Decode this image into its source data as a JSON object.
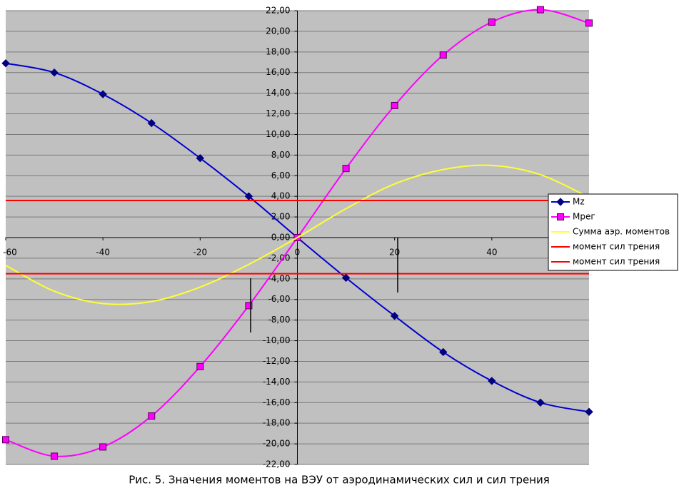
{
  "chart_data": {
    "type": "line",
    "smooth": true,
    "legend": "right",
    "grid": true,
    "caption": "Рис. 5. Значения моментов на ВЭУ от аэродинамических сил и сил трения",
    "x": [
      -60,
      -50,
      -40,
      -30,
      -20,
      -10,
      0,
      10,
      20,
      30,
      40,
      50,
      60
    ],
    "series": [
      {
        "name": "Mz",
        "color": "#0000cc",
        "marker": "diamond",
        "marker_color": "#000080",
        "values": [
          16.9,
          16.0,
          13.9,
          11.1,
          7.7,
          4.0,
          0,
          -3.9,
          -7.6,
          -11.1,
          -13.9,
          -16.0,
          -16.9
        ]
      },
      {
        "name": "Mрег",
        "color": "#ff00ff",
        "marker": "square",
        "marker_color": "#ff00ff",
        "values": [
          -19.6,
          -21.2,
          -20.3,
          -17.3,
          -12.5,
          -6.6,
          0,
          6.7,
          12.8,
          17.7,
          20.9,
          22.1,
          20.8
        ]
      },
      {
        "name": "Сумма аэр. моментов",
        "color": "#ffff33",
        "values": [
          -2.7,
          -5.2,
          -6.4,
          -6.2,
          -4.8,
          -2.6,
          0,
          2.8,
          5.2,
          6.6,
          7.0,
          6.1,
          3.9
        ]
      },
      {
        "name": "момент сил трения",
        "color": "#ff0000",
        "values": [
          3.6,
          3.6,
          3.6,
          3.6,
          3.6,
          3.6,
          3.6,
          3.6,
          3.6,
          3.6,
          3.6,
          3.6,
          3.6
        ]
      },
      {
        "name": "момент сил трения",
        "color": "#ff0000",
        "values": [
          -3.5,
          -3.5,
          -3.5,
          -3.5,
          -3.5,
          -3.5,
          -3.5,
          -3.5,
          -3.5,
          -3.5,
          -3.5,
          -3.5,
          -3.5
        ]
      }
    ],
    "xlim": [
      -60,
      60
    ],
    "xticks": [
      -60,
      -40,
      -20,
      0,
      20,
      40
    ],
    "ylim": [
      -22,
      22
    ],
    "yticks": [
      {
        "value": -22,
        "label": "-22,00"
      },
      {
        "value": -20,
        "label": "-20,00"
      },
      {
        "value": -18,
        "label": "-18,00"
      },
      {
        "value": -16,
        "label": "-16,00"
      },
      {
        "value": -14,
        "label": "-14,00"
      },
      {
        "value": -12,
        "label": "-12,00"
      },
      {
        "value": -10,
        "label": "-10,00"
      },
      {
        "value": -8,
        "label": "-8,00"
      },
      {
        "value": -6,
        "label": "-6,00"
      },
      {
        "value": -4,
        "label": "-4,00"
      },
      {
        "value": -2,
        "label": "-2,00"
      },
      {
        "value": 0,
        "label": "0,00"
      },
      {
        "value": 2,
        "label": "2,00"
      },
      {
        "value": 4,
        "label": "4,00"
      },
      {
        "value": 6,
        "label": "6,00"
      },
      {
        "value": 8,
        "label": "8,00"
      },
      {
        "value": 10,
        "label": "10,00"
      },
      {
        "value": 12,
        "label": "12,00"
      },
      {
        "value": 14,
        "label": "14,00"
      },
      {
        "value": 16,
        "label": "16,00"
      },
      {
        "value": 18,
        "label": "18,00"
      },
      {
        "value": 20,
        "label": "20,00"
      },
      {
        "value": 22,
        "label": "22,00"
      }
    ]
  }
}
